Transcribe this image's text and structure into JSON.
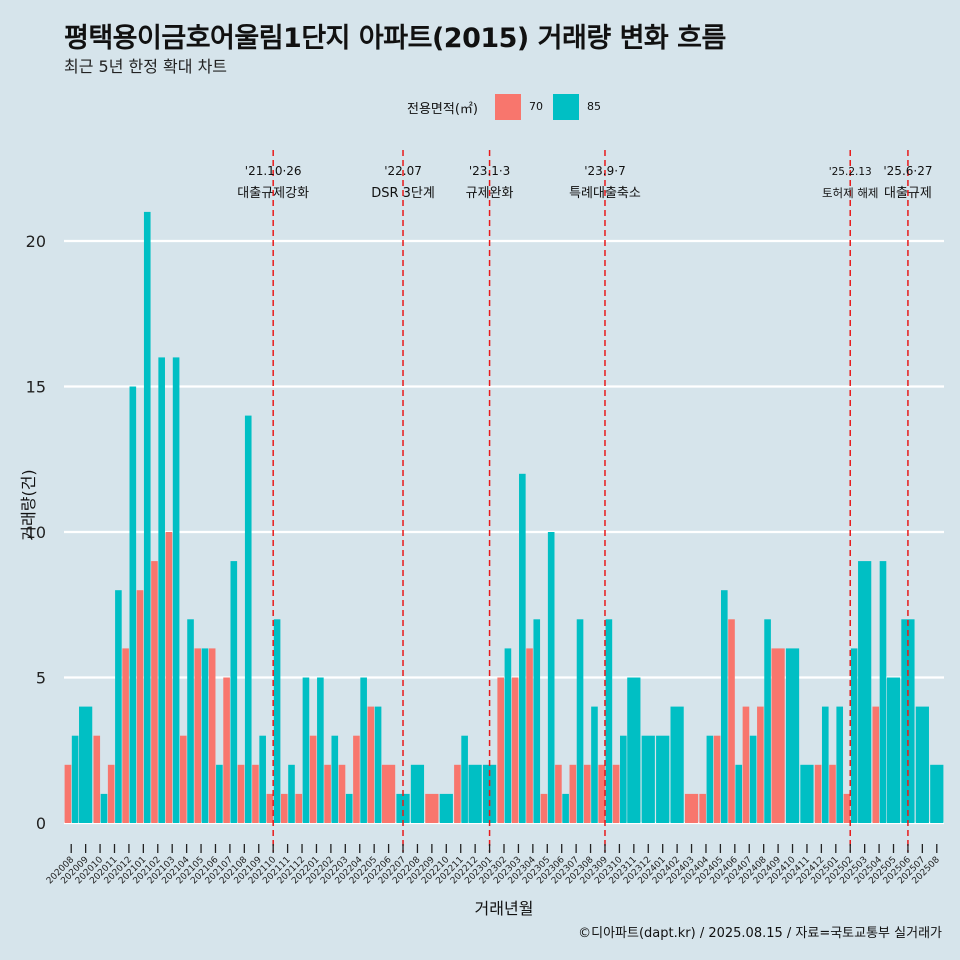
{
  "header": {
    "title": "평택용이금호어울림1단지 아파트(2015) 거래량 변화 흐름",
    "subtitle": "최근 5년 한정 확대 차트"
  },
  "legend": {
    "title": "전용면적(㎡)",
    "items": [
      {
        "label": "70",
        "color": "#f8766d"
      },
      {
        "label": "85",
        "color": "#00bfc4"
      }
    ]
  },
  "caption": "©디아파트(dapt.kr) / 2025.08.15 / 자료=국토교통부 실거래가",
  "chart_data": {
    "type": "bar",
    "title": "평택용이금호어울림1단지 아파트(2015) 거래량 변화 흐름",
    "xlabel": "거래년월",
    "ylabel": "거래량(건)",
    "ylim": [
      -1,
      23
    ],
    "yticks": [
      0,
      5,
      10,
      15,
      20
    ],
    "categories": [
      "202008",
      "202009",
      "202010",
      "202011",
      "202012",
      "202101",
      "202102",
      "202103",
      "202104",
      "202105",
      "202106",
      "202107",
      "202108",
      "202109",
      "202110",
      "202111",
      "202112",
      "202201",
      "202202",
      "202203",
      "202204",
      "202205",
      "202206",
      "202207",
      "202208",
      "202209",
      "202210",
      "202211",
      "202212",
      "202301",
      "202302",
      "202303",
      "202304",
      "202305",
      "202306",
      "202307",
      "202308",
      "202309",
      "202310",
      "202311",
      "202312",
      "202401",
      "202402",
      "202403",
      "202404",
      "202405",
      "202406",
      "202407",
      "202408",
      "202409",
      "202410",
      "202411",
      "202412",
      "202501",
      "202502",
      "202503",
      "202504",
      "202505",
      "202506",
      "202507",
      "202508"
    ],
    "series": [
      {
        "name": "70",
        "color": "#f8766d",
        "values": [
          2,
          0,
          3,
          2,
          6,
          8,
          9,
          10,
          3,
          6,
          6,
          5,
          2,
          2,
          1,
          1,
          1,
          3,
          2,
          2,
          3,
          4,
          2,
          0,
          0,
          1,
          0,
          2,
          0,
          0,
          5,
          5,
          6,
          1,
          2,
          2,
          2,
          2,
          2,
          0,
          0,
          0,
          0,
          1,
          1,
          3,
          7,
          4,
          4,
          6,
          0,
          0,
          2,
          2,
          1,
          0,
          4,
          0,
          0,
          0,
          0
        ]
      },
      {
        "name": "85",
        "color": "#00bfc4",
        "values": [
          3,
          4,
          1,
          8,
          15,
          21,
          16,
          16,
          7,
          6,
          2,
          9,
          14,
          3,
          7,
          2,
          5,
          5,
          3,
          1,
          5,
          4,
          0,
          1,
          2,
          0,
          1,
          3,
          2,
          2,
          6,
          12,
          7,
          10,
          1,
          7,
          4,
          7,
          3,
          5,
          3,
          3,
          4,
          0,
          3,
          8,
          2,
          3,
          7,
          0,
          6,
          2,
          4,
          4,
          6,
          9,
          9,
          5,
          7,
          4,
          2
        ]
      }
    ],
    "annotations": [
      {
        "date_line1": "'21.10·26",
        "date_line2": "대출규제강화",
        "after_category": "202110"
      },
      {
        "date_line1": "'22.07",
        "date_line2": "DSR 3단계",
        "after_category": "202207"
      },
      {
        "date_line1": "'23.1·3",
        "date_line2": "규제완화",
        "after_category": "202301"
      },
      {
        "date_line1": "'23.9·7",
        "date_line2": "특례대출축소",
        "after_category": "202309"
      },
      {
        "date_line1": "'25.2.13",
        "date_line2": "토허제 해제",
        "after_category": "202502"
      },
      {
        "date_line1": "'25.6·27",
        "date_line2": "대출규제",
        "after_category": "202506"
      }
    ],
    "grid": true,
    "legend_position": "top"
  }
}
